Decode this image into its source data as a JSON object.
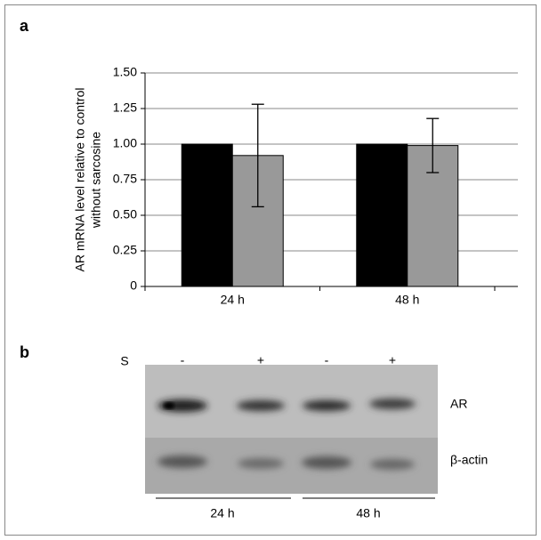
{
  "chart_data": {
    "type": "bar",
    "panel_label": "a",
    "ylabel": [
      "AR mRNA level relative to control",
      "without sarcosine"
    ],
    "categories": [
      "24 h",
      "48 h"
    ],
    "series": [
      {
        "color": "#000000",
        "values": [
          1.0,
          1.0
        ]
      },
      {
        "color": "#999999",
        "values": [
          0.92,
          0.99
        ],
        "errors": [
          0.36,
          0.19
        ]
      }
    ],
    "ylim": [
      0,
      1.5
    ],
    "yticks": [
      0,
      0.25,
      {
        "value": 0.5,
        "label": "0.50"
      },
      0.75,
      {
        "value": 1,
        "label": "1.00"
      },
      1.25,
      {
        "value": 1.5,
        "label": "1.50"
      }
    ],
    "grid": true
  },
  "blot": {
    "panel_label": "b",
    "row_label": "S",
    "lanes": [
      "-",
      "+",
      "-",
      "+"
    ],
    "bands": [
      "AR",
      "β-actin"
    ],
    "groups": [
      "24 h",
      "48 h"
    ]
  }
}
